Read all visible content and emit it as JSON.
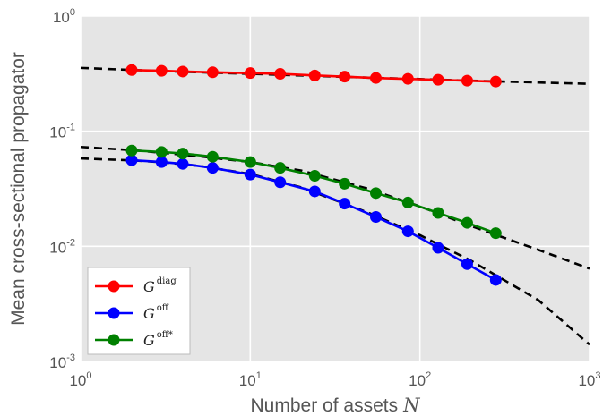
{
  "chart_data": {
    "type": "line",
    "xscale": "log",
    "yscale": "log",
    "xlim": [
      1,
      1000
    ],
    "ylim": [
      0.001,
      1
    ],
    "grid": true,
    "xlabel": "Number of assets",
    "xlabel_var": "N",
    "ylabel": "Mean cross-sectional propagator",
    "xticks": [
      {
        "value": 1,
        "base": "10",
        "exp": "0"
      },
      {
        "value": 10,
        "base": "10",
        "exp": "1"
      },
      {
        "value": 100,
        "base": "10",
        "exp": "2"
      },
      {
        "value": 1000,
        "base": "10",
        "exp": "3"
      }
    ],
    "yticks": [
      {
        "value": 1,
        "base": "10",
        "exp": "0"
      },
      {
        "value": 0.1,
        "base": "10",
        "exp": "-1"
      },
      {
        "value": 0.01,
        "base": "10",
        "exp": "-2"
      },
      {
        "value": 0.001,
        "base": "10",
        "exp": "-3"
      }
    ],
    "legend_position": "lower-left",
    "series": [
      {
        "name": "G^diag",
        "name_base": "G",
        "name_sup": "diag",
        "color": "#ff0000",
        "x": [
          2,
          3,
          4,
          6,
          10,
          15,
          24,
          36,
          55,
          85,
          128,
          190,
          280
        ],
        "y": [
          0.34,
          0.335,
          0.33,
          0.325,
          0.32,
          0.315,
          0.305,
          0.298,
          0.29,
          0.285,
          0.28,
          0.275,
          0.27
        ]
      },
      {
        "name": "G^off",
        "name_base": "G",
        "name_sup": "off",
        "color": "#0000ff",
        "x": [
          2,
          3,
          4,
          6,
          10,
          15,
          24,
          36,
          55,
          85,
          128,
          190,
          280
        ],
        "y": [
          0.056,
          0.054,
          0.052,
          0.048,
          0.042,
          0.036,
          0.03,
          0.0235,
          0.018,
          0.0135,
          0.0097,
          0.007,
          0.0051
        ]
      },
      {
        "name": "G^off*",
        "name_base": "G",
        "name_sup": "off*",
        "color": "#008000",
        "x": [
          2,
          3,
          4,
          6,
          10,
          15,
          24,
          36,
          55,
          85,
          128,
          190,
          280
        ],
        "y": [
          0.068,
          0.066,
          0.064,
          0.06,
          0.054,
          0.048,
          0.041,
          0.035,
          0.029,
          0.024,
          0.0195,
          0.016,
          0.013
        ]
      }
    ],
    "fits": [
      {
        "style": "dashed",
        "color": "#000000",
        "x": [
          1,
          2,
          3,
          5,
          10,
          20,
          50,
          100,
          200,
          500,
          1000
        ],
        "y": [
          0.355,
          0.341,
          0.333,
          0.325,
          0.315,
          0.305,
          0.292,
          0.284,
          0.275,
          0.265,
          0.258
        ]
      },
      {
        "style": "dashed",
        "color": "#000000",
        "x": [
          1,
          2,
          3,
          5,
          10,
          20,
          50,
          100,
          200,
          500,
          1000
        ],
        "y": [
          0.058,
          0.0558,
          0.0538,
          0.05,
          0.0425,
          0.0325,
          0.0195,
          0.0125,
          0.0075,
          0.0034,
          0.0014
        ]
      },
      {
        "style": "dashed",
        "color": "#000000",
        "x": [
          1,
          2,
          3,
          5,
          10,
          20,
          50,
          100,
          200,
          500,
          1000
        ],
        "y": [
          0.073,
          0.0685,
          0.065,
          0.0605,
          0.054,
          0.0455,
          0.0315,
          0.0222,
          0.015,
          0.0093,
          0.0064
        ]
      }
    ]
  }
}
